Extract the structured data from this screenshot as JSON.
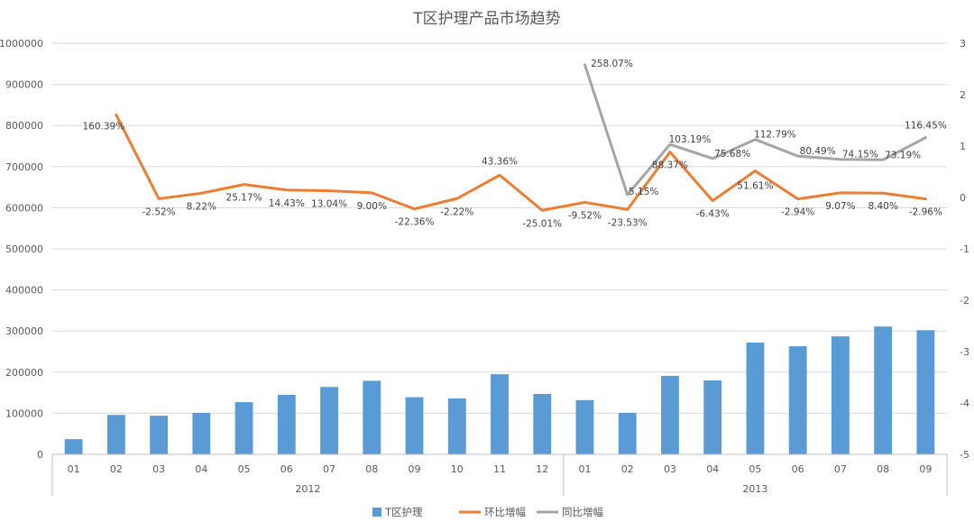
{
  "chart_data": {
    "type": "bar",
    "title": "T区护理产品市场趋势",
    "groups": [
      {
        "label": "2012",
        "categories": [
          "01",
          "02",
          "03",
          "04",
          "05",
          "06",
          "07",
          "08",
          "09",
          "10",
          "11",
          "12"
        ]
      },
      {
        "label": "2013",
        "categories": [
          "01",
          "02",
          "03",
          "04",
          "05",
          "06",
          "07",
          "08",
          "09"
        ]
      }
    ],
    "categories": [
      "01",
      "02",
      "03",
      "04",
      "05",
      "06",
      "07",
      "08",
      "09",
      "10",
      "11",
      "12",
      "01",
      "02",
      "03",
      "04",
      "05",
      "06",
      "07",
      "08",
      "09"
    ],
    "y_left": {
      "ticks": [
        "0",
        "100000",
        "200000",
        "300000",
        "400000",
        "500000",
        "600000",
        "700000",
        "800000",
        "900000",
        "1000000"
      ],
      "lim": [
        0,
        1000000
      ]
    },
    "y_right": {
      "ticks": [
        "-5",
        "-4",
        "-3",
        "-2",
        "-1",
        "0",
        "1",
        "2",
        "3"
      ],
      "lim": [
        -5,
        3
      ]
    },
    "series": [
      {
        "name": "T区护理",
        "type": "bar",
        "axis": "left",
        "color": "#5B9BD5",
        "values": [
          37000,
          96000,
          94000,
          101000,
          127000,
          145000,
          164000,
          179000,
          139000,
          136000,
          195000,
          147000,
          132000,
          101000,
          191000,
          180000,
          272000,
          263000,
          287000,
          311000,
          302000
        ]
      },
      {
        "name": "环比增幅",
        "type": "line",
        "axis": "right",
        "color": "#ED7D31",
        "values": [
          null,
          1.6039,
          -0.0252,
          0.0822,
          0.2517,
          0.1443,
          0.1304,
          0.09,
          -0.2236,
          -0.0222,
          0.4336,
          -0.2501,
          -0.0952,
          -0.2353,
          0.8837,
          -0.0643,
          0.5161,
          -0.0294,
          0.0907,
          0.084,
          -0.0296
        ],
        "labels": [
          "",
          "160.39%",
          "-2.52%",
          "8.22%",
          "25.17%",
          "14.43%",
          "13.04%",
          "9.00%",
          "-22.36%",
          "-2.22%",
          "43.36%",
          "-25.01%",
          "-9.52%",
          "-23.53%",
          "88.37%",
          "-6.43%",
          "51.61%",
          "-2.94%",
          "9.07%",
          "8.40%",
          "-2.96%"
        ]
      },
      {
        "name": "同比增幅",
        "type": "line",
        "axis": "right",
        "color": "#A5A5A5",
        "values": [
          null,
          null,
          null,
          null,
          null,
          null,
          null,
          null,
          null,
          null,
          null,
          null,
          2.5807,
          0.0515,
          1.0319,
          0.7568,
          1.1279,
          0.8049,
          0.7415,
          0.7319,
          1.1645
        ],
        "labels": [
          "",
          "",
          "",
          "",
          "",
          "",
          "",
          "",
          "",
          "",
          "",
          "",
          "258.07%",
          "5.15%",
          "103.19%",
          "75.68%",
          "112.79%",
          "80.49%",
          "74.15%",
          "73.19%",
          "116.45%"
        ]
      }
    ],
    "legend": {
      "position": "bottom"
    },
    "grid": true
  }
}
